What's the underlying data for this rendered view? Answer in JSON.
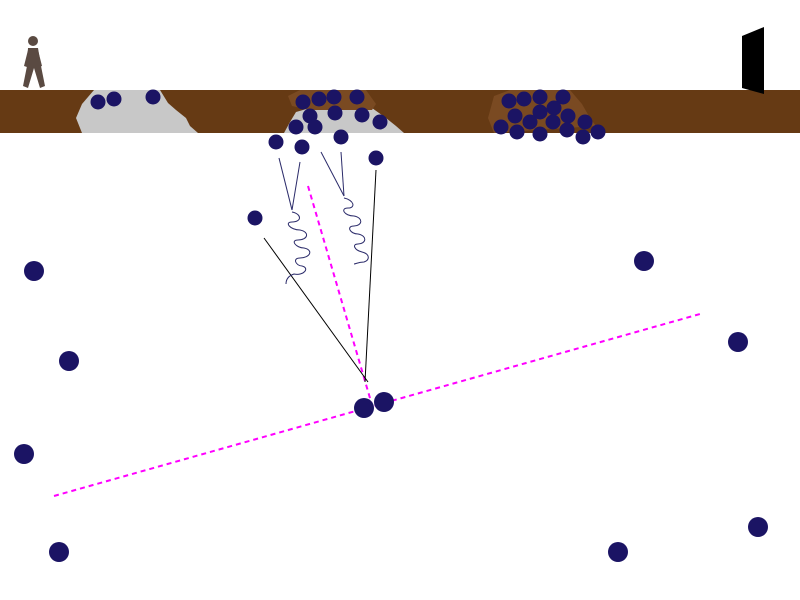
{
  "scene": {
    "name": "particle-physics-game",
    "colors": {
      "sky": "#ffffff",
      "ground": "#663a14",
      "dug_hole": "#c8c8c8",
      "dirt_mound": "#7a4a22",
      "particle": "#1b1464",
      "laser": "#ff00ff",
      "track": "#000000",
      "spring": "#2b2b6a",
      "person": "#5a4a42",
      "door": "#000000"
    },
    "icons": {
      "player": "person-icon",
      "exit": "door-icon"
    },
    "free_particle_count": 11,
    "pile_count": 3,
    "collision_pair_count": 1
  }
}
